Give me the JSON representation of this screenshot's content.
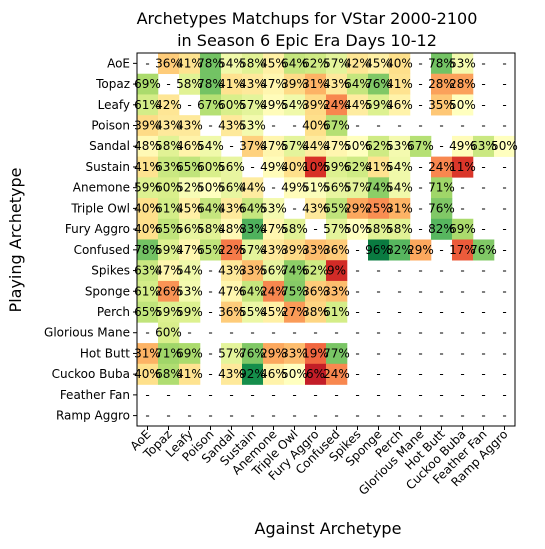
{
  "chart_data": {
    "type": "heatmap",
    "title_line1": "Archetypes Matchups for VStar 2000-2100",
    "title_line2": "in Season 6 Epic Era Days 10-12",
    "xlabel": "Against Archetype",
    "ylabel": "Playing Archetype",
    "rows": [
      "AoE",
      "Topaz",
      "Leafy",
      "Poison",
      "Sandal",
      "Sustain",
      "Anemone",
      "Triple Owl",
      "Fury Aggro",
      "Confused",
      "Spikes",
      "Sponge",
      "Perch",
      "Glorious Mane",
      "Hot Butt",
      "Cuckoo Buba",
      "Feather Fan",
      "Ramp Aggro"
    ],
    "columns": [
      "AoE",
      "Topaz",
      "Leafy",
      "Poison",
      "Sandal",
      "Sustain",
      "Anemone",
      "Triple Owl",
      "Fury Aggro",
      "Confused",
      "Spikes",
      "Sponge",
      "Perch",
      "Glorious Mane",
      "Hot Butt",
      "Cuckoo Buba",
      "Feather Fan",
      "Ramp Aggro"
    ],
    "values": [
      [
        null,
        36,
        41,
        78,
        54,
        58,
        45,
        64,
        62,
        57,
        42,
        45,
        40,
        null,
        78,
        53,
        null,
        null
      ],
      [
        69,
        null,
        58,
        78,
        41,
        43,
        47,
        39,
        31,
        43,
        64,
        76,
        41,
        null,
        28,
        28,
        null,
        null
      ],
      [
        61,
        42,
        null,
        67,
        60,
        57,
        49,
        54,
        39,
        24,
        44,
        59,
        46,
        null,
        35,
        50,
        null,
        null
      ],
      [
        39,
        43,
        43,
        null,
        43,
        53,
        null,
        null,
        40,
        67,
        null,
        null,
        null,
        null,
        null,
        null,
        null,
        null
      ],
      [
        48,
        58,
        46,
        54,
        null,
        37,
        47,
        57,
        44,
        47,
        50,
        62,
        53,
        67,
        null,
        49,
        63,
        50
      ],
      [
        41,
        63,
        65,
        60,
        56,
        null,
        49,
        40,
        10,
        59,
        62,
        41,
        54,
        null,
        24,
        11,
        null,
        null
      ],
      [
        59,
        60,
        52,
        50,
        56,
        44,
        null,
        49,
        51,
        56,
        57,
        74,
        54,
        null,
        71,
        null,
        null,
        null
      ],
      [
        40,
        61,
        45,
        64,
        43,
        64,
        53,
        null,
        43,
        65,
        29,
        25,
        31,
        null,
        76,
        null,
        null,
        null
      ],
      [
        40,
        65,
        56,
        58,
        48,
        83,
        47,
        58,
        null,
        57,
        50,
        58,
        58,
        null,
        82,
        69,
        null,
        null
      ],
      [
        78,
        59,
        47,
        65,
        22,
        57,
        43,
        39,
        33,
        36,
        null,
        96,
        82,
        29,
        null,
        17,
        76,
        null
      ],
      [
        63,
        47,
        54,
        null,
        43,
        33,
        56,
        74,
        62,
        9,
        null,
        null,
        null,
        null,
        null,
        null,
        null,
        null
      ],
      [
        61,
        26,
        53,
        null,
        47,
        64,
        24,
        75,
        36,
        33,
        null,
        null,
        null,
        null,
        null,
        null,
        null,
        null
      ],
      [
        65,
        59,
        59,
        null,
        36,
        55,
        45,
        27,
        38,
        61,
        null,
        null,
        null,
        null,
        null,
        null,
        null,
        null
      ],
      [
        null,
        60,
        null,
        null,
        null,
        null,
        null,
        null,
        null,
        null,
        null,
        null,
        null,
        null,
        null,
        null,
        null,
        null
      ],
      [
        31,
        71,
        69,
        null,
        57,
        76,
        29,
        33,
        19,
        77,
        null,
        null,
        null,
        null,
        null,
        null,
        null,
        null
      ],
      [
        40,
        68,
        41,
        null,
        43,
        92,
        46,
        50,
        6,
        24,
        null,
        null,
        null,
        null,
        null,
        null,
        null,
        null
      ],
      [
        null,
        null,
        null,
        null,
        null,
        null,
        null,
        null,
        null,
        null,
        null,
        null,
        null,
        null,
        null,
        null,
        null,
        null
      ],
      [
        null,
        null,
        null,
        null,
        null,
        null,
        null,
        null,
        null,
        null,
        null,
        null,
        null,
        null,
        null,
        null,
        null,
        null
      ]
    ],
    "missing_label": "-",
    "value_suffix": "%",
    "colormap": "RdYlGn",
    "vmin": 0,
    "vmax": 100
  }
}
